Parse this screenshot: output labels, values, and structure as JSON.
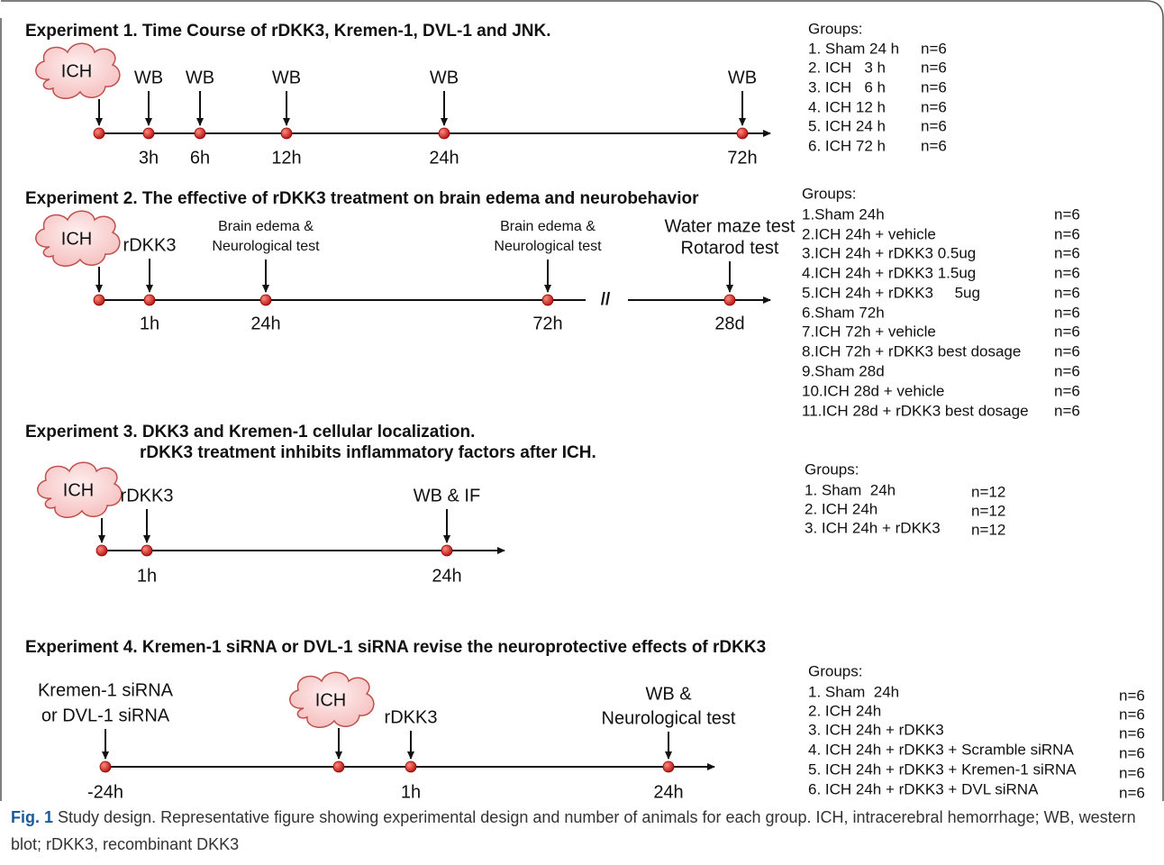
{
  "experiments": [
    {
      "title_lines": [
        "Experiment 1. Time Course of rDKK3, Kremen-1, DVL-1 and JNK."
      ],
      "events": [
        {
          "label": [
            "ICH"
          ]
        },
        {
          "label": [
            "WB"
          ],
          "time": "3h"
        },
        {
          "label": [
            "WB"
          ],
          "time": "6h"
        },
        {
          "label": [
            "WB"
          ],
          "time": "12h"
        },
        {
          "label": [
            "WB"
          ],
          "time": "24h"
        },
        {
          "label": [
            "WB"
          ],
          "time": "72h"
        }
      ],
      "groups_title": "Groups:",
      "groups": [
        {
          "label": "1. Sham 24 h",
          "n": "n=6"
        },
        {
          "label": "2. ICH   3 h",
          "n": "n=6"
        },
        {
          "label": "3. ICH   6 h",
          "n": "n=6"
        },
        {
          "label": "4. ICH 12 h",
          "n": "n=6"
        },
        {
          "label": "5. ICH 24 h",
          "n": "n=6"
        },
        {
          "label": "6. ICH 72 h",
          "n": "n=6"
        }
      ]
    },
    {
      "title_lines": [
        "Experiment 2. The effective of rDKK3 treatment on brain edema and neurobehavior"
      ],
      "break": "//",
      "events": [
        {
          "label": [
            "ICH"
          ]
        },
        {
          "label": [
            "rDKK3"
          ],
          "time": "1h"
        },
        {
          "label": [
            "Brain edema &",
            "Neurological test"
          ],
          "time": "24h"
        },
        {
          "label": [
            "Brain edema &",
            "Neurological test"
          ],
          "time": "72h"
        },
        {
          "label": [
            "Water maze test",
            "Rotarod test"
          ],
          "time": "28d"
        }
      ],
      "groups_title": "Groups:",
      "groups": [
        {
          "label": "1.Sham 24h",
          "n": "n=6"
        },
        {
          "label": "2.ICH 24h + vehicle",
          "n": "n=6"
        },
        {
          "label": "3.ICH 24h + rDKK3 0.5ug",
          "n": "n=6"
        },
        {
          "label": "4.ICH 24h + rDKK3 1.5ug",
          "n": "n=6"
        },
        {
          "label": "5.ICH 24h + rDKK3     5ug",
          "n": "n=6"
        },
        {
          "label": "6.Sham 72h",
          "n": "n=6"
        },
        {
          "label": "7.ICH 72h + vehicle",
          "n": "n=6"
        },
        {
          "label": "8.ICH 72h + rDKK3 best dosage",
          "n": "n=6"
        },
        {
          "label": "9.Sham 28d",
          "n": "n=6"
        },
        {
          "label": "10.ICH 28d + vehicle",
          "n": "n=6"
        },
        {
          "label": "11.ICH 28d + rDKK3 best dosage",
          "n": "n=6"
        }
      ]
    },
    {
      "title_lines": [
        "Experiment 3. DKK3 and Kremen-1 cellular localization.",
        "rDKK3 treatment inhibits  inflammatory  factors after ICH."
      ],
      "events": [
        {
          "label": [
            "ICH"
          ]
        },
        {
          "label": [
            "rDKK3"
          ],
          "time": "1h"
        },
        {
          "label": [
            "WB & IF"
          ],
          "time": "24h"
        }
      ],
      "groups_title": "Groups:",
      "groups": [
        {
          "label": "1. Sham  24h",
          "n": "n=12"
        },
        {
          "label": "2. ICH 24h",
          "n": "n=12"
        },
        {
          "label": "3. ICH 24h + rDKK3",
          "n": "n=12"
        }
      ]
    },
    {
      "title_lines": [
        "Experiment 4. Kremen-1 siRNA or DVL-1 siRNA revise the neuroprotective effects of rDKK3"
      ],
      "events": [
        {
          "label": [
            "Kremen-1 siRNA",
            "or DVL-1 siRNA"
          ],
          "time": "-24h"
        },
        {
          "label": [
            "ICH"
          ]
        },
        {
          "label": [
            "rDKK3"
          ],
          "time": "1h"
        },
        {
          "label": [
            "WB &",
            "Neurological test"
          ],
          "time": "24h"
        }
      ],
      "groups_title": "Groups:",
      "groups": [
        {
          "label": "1. Sham  24h",
          "n": "n=6"
        },
        {
          "label": "2. ICH 24h",
          "n": "n=6"
        },
        {
          "label": "3. ICH 24h + rDKK3",
          "n": "n=6"
        },
        {
          "label": "4. ICH 24h + rDKK3 + Scramble siRNA",
          "n": "n=6"
        },
        {
          "label": "5. ICH 24h + rDKK3 + Kremen-1 siRNA",
          "n": "n=6"
        },
        {
          "label": "6. ICH 24h + rDKK3 + DVL siRNA",
          "n": "n=6"
        }
      ]
    }
  ],
  "caption": {
    "label": "Fig. 1",
    "text": "Study design. Representative figure showing experimental design and number of animals for each group. ICH, intracerebral hemorrhage; WB, western blot; rDKK3, recombinant DKK3"
  }
}
